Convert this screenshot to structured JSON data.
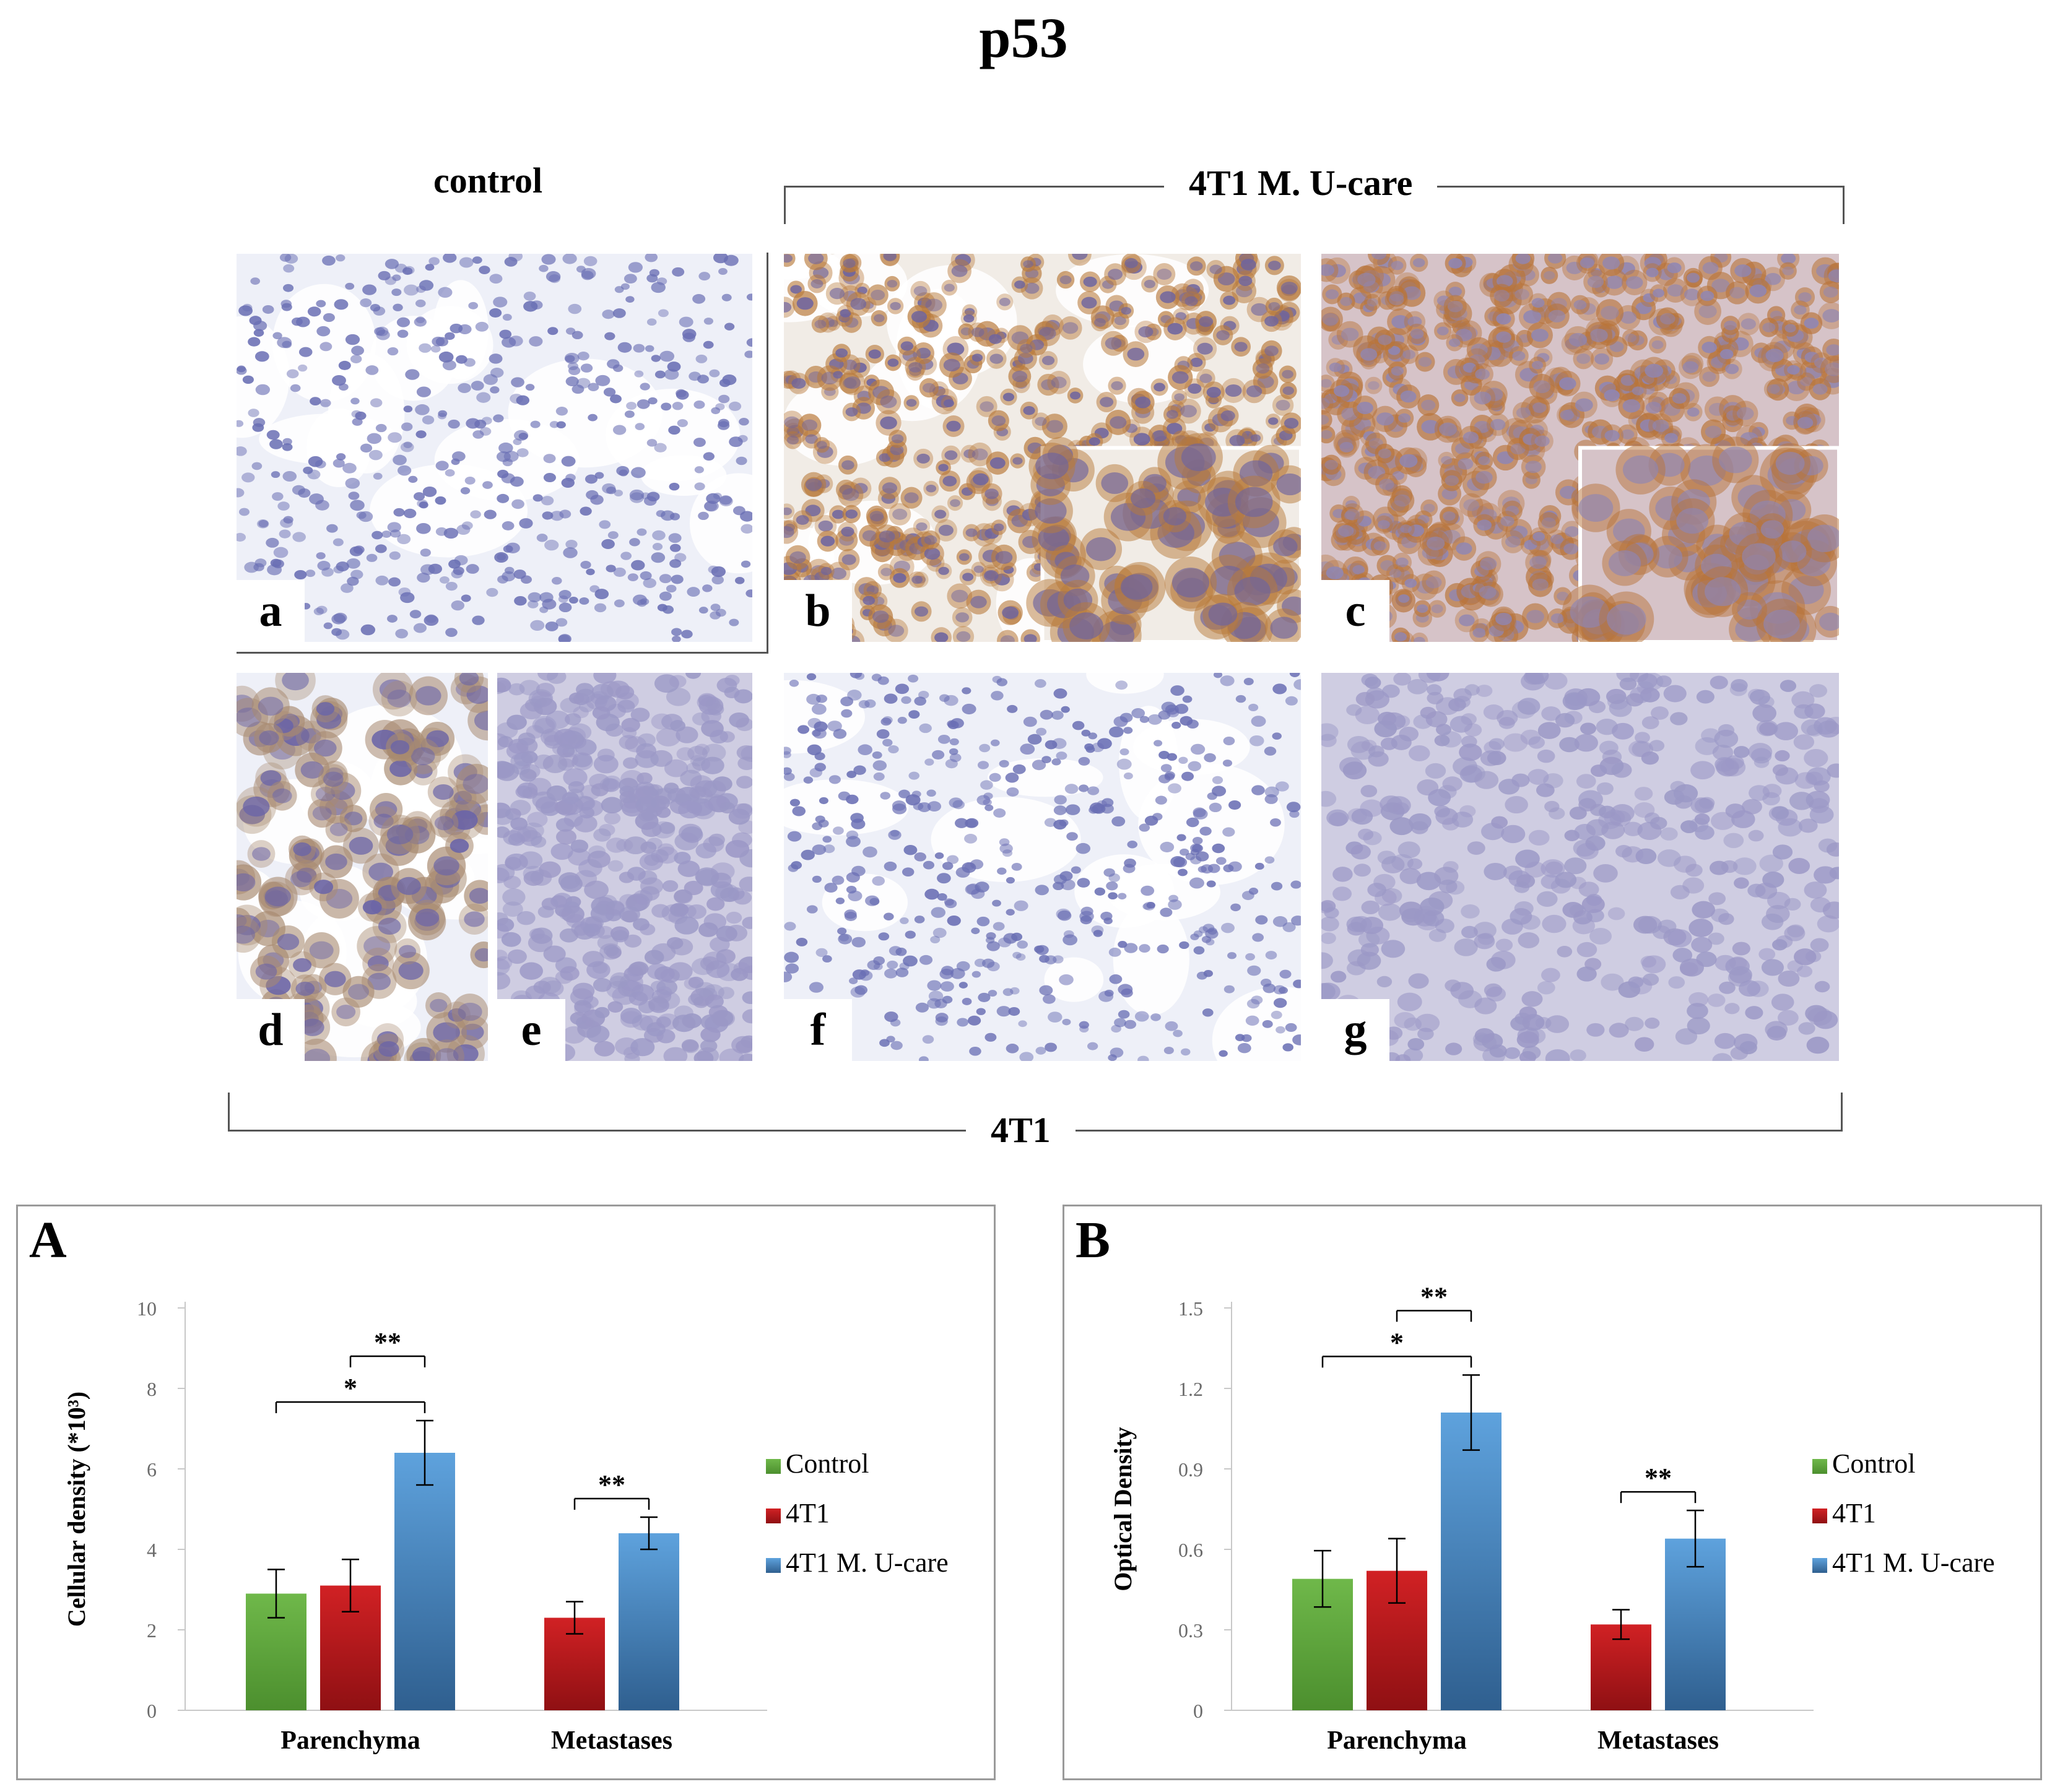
{
  "title": "p53",
  "groups": {
    "control": "control",
    "ucare": "4T1 M. U-care",
    "t41": "4T1"
  },
  "panels": [
    {
      "letter": "a",
      "stain": "blue"
    },
    {
      "letter": "b",
      "stain": "brown"
    },
    {
      "letter": "c",
      "stain": "brown-dense"
    },
    {
      "letter": "d",
      "stain": "blue-large"
    },
    {
      "letter": "e",
      "stain": "blue-dense"
    },
    {
      "letter": "f",
      "stain": "blue"
    },
    {
      "letter": "g",
      "stain": "blue-dense"
    }
  ],
  "colors": {
    "control": "#5aa33b",
    "t41": "#c0161a",
    "ucare": "#4a8fcc"
  },
  "chart_data": [
    {
      "panel": "A",
      "type": "bar",
      "categories": [
        "Parenchyma",
        "Metastases"
      ],
      "ylabel": "Cellular density (*10³)",
      "ylim": [
        0,
        10
      ],
      "yticks": [
        "0",
        "2",
        "4",
        "6",
        "8",
        "10"
      ],
      "series": [
        {
          "name": "Control",
          "color_key": "control",
          "values": [
            2.9,
            null
          ],
          "errors": [
            0.6,
            null
          ]
        },
        {
          "name": "4T1",
          "color_key": "t41",
          "values": [
            3.1,
            2.3
          ],
          "errors": [
            0.65,
            0.4
          ]
        },
        {
          "name": "4T1 M. U-care",
          "color_key": "ucare",
          "values": [
            6.4,
            4.4
          ],
          "errors": [
            0.8,
            0.4
          ]
        }
      ],
      "annotations": [
        {
          "text": "*",
          "from": [
            "Parenchyma",
            "Control"
          ],
          "to": [
            "Parenchyma",
            "4T1 M. U-care"
          ]
        },
        {
          "text": "**",
          "from": [
            "Parenchyma",
            "4T1"
          ],
          "to": [
            "Parenchyma",
            "4T1 M. U-care"
          ]
        },
        {
          "text": "**",
          "from": [
            "Metastases",
            "4T1"
          ],
          "to": [
            "Metastases",
            "4T1 M. U-care"
          ]
        }
      ],
      "legend": "right"
    },
    {
      "panel": "B",
      "type": "bar",
      "categories": [
        "Parenchyma",
        "Metastases"
      ],
      "ylabel": "Optical Density",
      "ylim": [
        0,
        1.5
      ],
      "yticks": [
        "0",
        "0.3",
        "0.6",
        "0.9",
        "1.2",
        "1.5"
      ],
      "series": [
        {
          "name": "Control",
          "color_key": "control",
          "values": [
            0.49,
            null
          ],
          "errors": [
            0.105,
            null
          ]
        },
        {
          "name": "4T1",
          "color_key": "t41",
          "values": [
            0.52,
            0.32
          ],
          "errors": [
            0.12,
            0.055
          ]
        },
        {
          "name": "4T1 M. U-care",
          "color_key": "ucare",
          "values": [
            1.11,
            0.64
          ],
          "errors": [
            0.14,
            0.105
          ]
        }
      ],
      "annotations": [
        {
          "text": "*",
          "from": [
            "Parenchyma",
            "Control"
          ],
          "to": [
            "Parenchyma",
            "4T1 M. U-care"
          ]
        },
        {
          "text": "**",
          "from": [
            "Parenchyma",
            "4T1"
          ],
          "to": [
            "Parenchyma",
            "4T1 M. U-care"
          ]
        },
        {
          "text": "**",
          "from": [
            "Metastases",
            "4T1"
          ],
          "to": [
            "Metastases",
            "4T1 M. U-care"
          ]
        }
      ],
      "legend": "right"
    }
  ]
}
